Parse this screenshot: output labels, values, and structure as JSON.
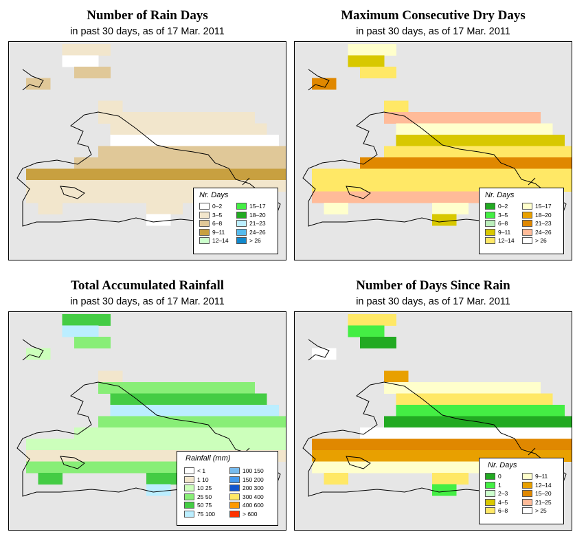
{
  "panels": [
    {
      "id": "rain_days",
      "title": "Number of Rain Days",
      "subtitle": "in past 30 days, as of  17 Mar. 2011",
      "legend": {
        "title": "Nr. Days",
        "items": [
          {
            "label": "0–2",
            "color": "#ffffff"
          },
          {
            "label": "3–5",
            "color": "#f2e6cc"
          },
          {
            "label": "6–8",
            "color": "#e0c898"
          },
          {
            "label": "9–11",
            "color": "#c8a040"
          },
          {
            "label": "12–14",
            "color": "#ccffcc"
          },
          {
            "label": "15–17",
            "color": "#44ee44"
          },
          {
            "label": "18–20",
            "color": "#22aa22"
          },
          {
            "label": "21–23",
            "color": "#bbeeff"
          },
          {
            "label": "24–26",
            "color": "#55bbee"
          },
          {
            "label": "> 26",
            "color": "#1188cc"
          }
        ]
      }
    },
    {
      "id": "dry_days",
      "title": "Maximum Consecutive Dry Days",
      "subtitle": "in past 30 days, as of  17 Mar. 2011",
      "legend": {
        "title": "Nr. Days",
        "items": [
          {
            "label": "0–2",
            "color": "#22aa22"
          },
          {
            "label": "3–5",
            "color": "#44ee44"
          },
          {
            "label": "6–8",
            "color": "#bbeebb"
          },
          {
            "label": "9–11",
            "color": "#d8c800"
          },
          {
            "label": "12–14",
            "color": "#ffe866"
          },
          {
            "label": "15–17",
            "color": "#ffffcc"
          },
          {
            "label": "18–20",
            "color": "#e8a000"
          },
          {
            "label": "21–23",
            "color": "#e08800"
          },
          {
            "label": "24–26",
            "color": "#ffbb99"
          },
          {
            "label": "> 26",
            "color": "#ffffff"
          }
        ]
      }
    },
    {
      "id": "total_rain",
      "title": "Total Accumulated Rainfall",
      "subtitle": "in past 30 days, as of  17 Mar. 2011",
      "legend": {
        "title": "Rainfall (mm)",
        "items": [
          {
            "label": "< 1",
            "color": "#ffffff"
          },
          {
            "label": "1     10",
            "color": "#f2e6cc"
          },
          {
            "label": "10     25",
            "color": "#ccffbb"
          },
          {
            "label": "25     50",
            "color": "#88ee77"
          },
          {
            "label": "50     75",
            "color": "#44cc44"
          },
          {
            "label": "75   100",
            "color": "#bbeeff"
          },
          {
            "label": "100   150",
            "color": "#77bbee"
          },
          {
            "label": "150   200",
            "color": "#4499ee"
          },
          {
            "label": "200   300",
            "color": "#1155cc"
          },
          {
            "label": "300   400",
            "color": "#ffe866"
          },
          {
            "label": "400   600",
            "color": "#ff9900"
          },
          {
            "label": "> 600",
            "color": "#ff3300"
          }
        ]
      }
    },
    {
      "id": "days_since",
      "title": "Number of Days Since Rain",
      "subtitle": "in past 30 days, as of  17 Mar. 2011",
      "legend": {
        "title": "Nr. Days",
        "items": [
          {
            "label": "0",
            "color": "#22aa22"
          },
          {
            "label": "1",
            "color": "#44ee44"
          },
          {
            "label": "2–3",
            "color": "#ccffcc"
          },
          {
            "label": "4–5",
            "color": "#d8c800"
          },
          {
            "label": "6–8",
            "color": "#ffe866"
          },
          {
            "label": "9–11",
            "color": "#ffffcc"
          },
          {
            "label": "12–14",
            "color": "#e8a000"
          },
          {
            "label": "15–20",
            "color": "#e08800"
          },
          {
            "label": "21–25",
            "color": "#ffbb99"
          },
          {
            "label": "> 25",
            "color": "#ffffff"
          }
        ]
      }
    }
  ]
}
